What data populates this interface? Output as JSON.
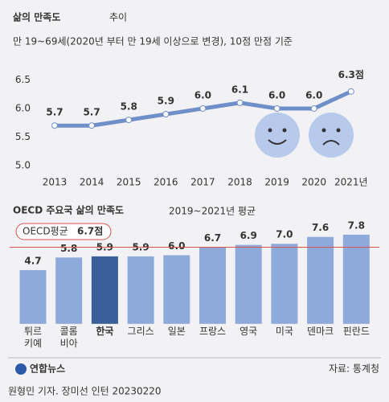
{
  "chart_data": [
    {
      "type": "line",
      "title": "삶의 만족도",
      "title_suffix": "추이",
      "subtitle": "만 19~69세(2020년 부터 만 19세 이상으로 변경), 10점 만점 기준",
      "categories": [
        "2013",
        "2014",
        "2015",
        "2016",
        "2017",
        "2018",
        "2019",
        "2020",
        "2021년"
      ],
      "values": [
        5.7,
        5.7,
        5.8,
        5.9,
        6.0,
        6.1,
        6.0,
        6.0,
        6.3
      ],
      "value_labels": [
        "5.7",
        "5.7",
        "5.8",
        "5.9",
        "6.0",
        "6.1",
        "6.0",
        "6.0",
        "6.3점"
      ],
      "color": "#6f8fc8",
      "ylim": [
        4.87,
        6.55
      ],
      "yticks": [
        {
          "value": 5,
          "label": "5.0"
        },
        5.5,
        {
          "value": 6,
          "label": "6.0"
        },
        6.5
      ],
      "grid": false
    },
    {
      "type": "bar",
      "title": "OECD 주요국 삶의 만족도",
      "subtitle": "2019~2021년 평균",
      "categories": [
        "튀르\n키예",
        "콜롬\n비아",
        "한국",
        "그리스",
        "일본",
        "프랑스",
        "영국",
        "미국",
        "덴마크",
        "핀란드"
      ],
      "values": [
        4.7,
        5.8,
        5.9,
        5.9,
        6.0,
        6.7,
        6.9,
        7.0,
        7.6,
        7.8
      ],
      "value_labels": [
        "4.7",
        "5.8",
        "5.9",
        "5.9",
        "6.0",
        "6.7",
        "6.9",
        "7.0",
        "7.6",
        "7.8"
      ],
      "colors": [
        "#8eaadb",
        "#8eaadb",
        "#3b5f98",
        "#8eaadb",
        "#8eaadb",
        "#8eaadb",
        "#8eaadb",
        "#8eaadb",
        "#8eaadb",
        "#8eaadb"
      ],
      "ylim": [
        0,
        8.0
      ],
      "reference": {
        "label": "OECD평균",
        "value": 6.7,
        "value_label": "6.7점",
        "color": "#d9534f"
      }
    }
  ],
  "footer": {
    "logo": "연합뉴스",
    "source": "자료: 통계청",
    "byline": "원형민 기자. 장미선 인턴  20230220"
  }
}
